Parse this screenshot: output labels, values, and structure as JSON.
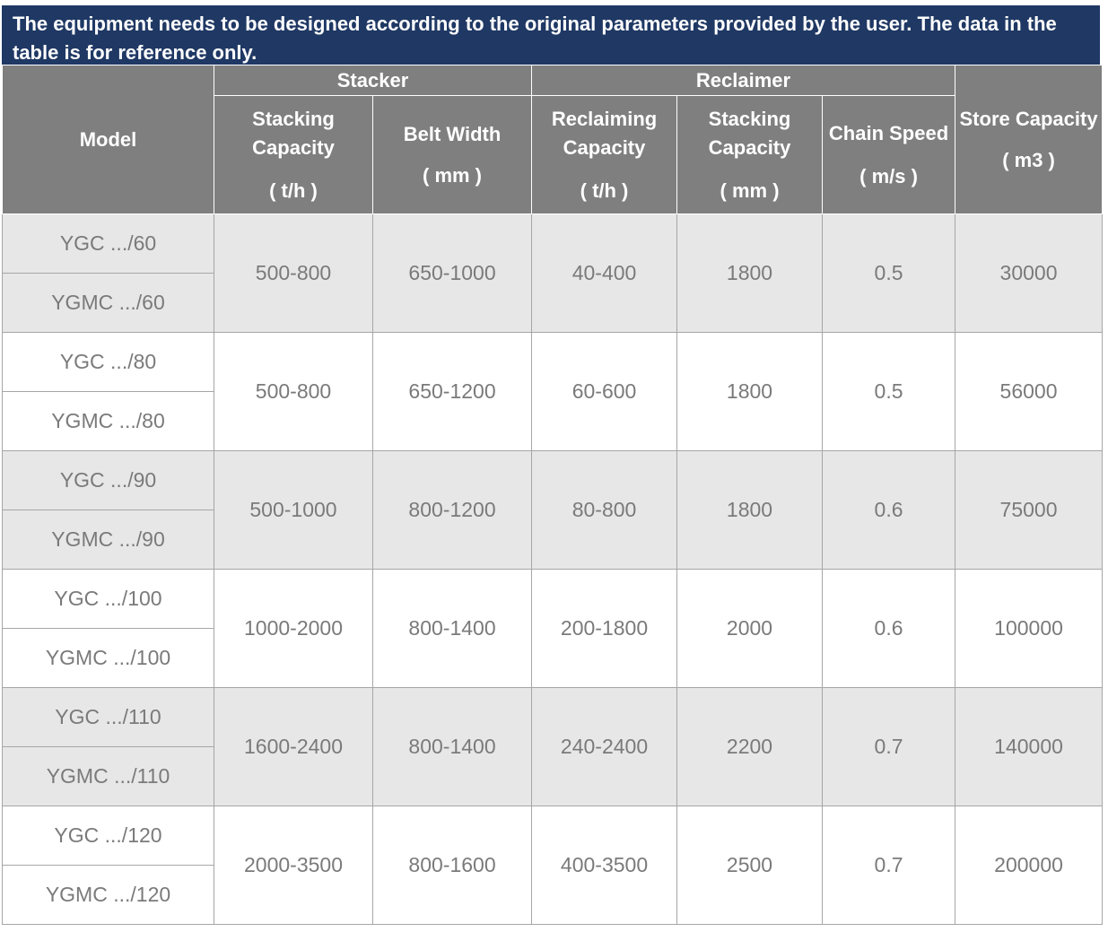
{
  "notice": "The equipment needs to be designed according to the original parameters provided by the user. The data in the table is for reference only.",
  "header": {
    "model": "Model",
    "stacker": "Stacker",
    "reclaimer": "Reclaimer",
    "stacking_capacity": "Stacking Capacity",
    "stacking_capacity_unit": "( t/h )",
    "belt_width": "Belt Width",
    "belt_width_unit": "( mm )",
    "reclaiming_capacity": "Reclaiming Capacity",
    "reclaiming_capacity_unit": "( t/h )",
    "reclaimer_stacking_capacity": "Stacking Capacity",
    "reclaimer_stacking_capacity_unit": "( mm )",
    "chain_speed": "Chain Speed",
    "chain_speed_unit": "( m/s )",
    "store_capacity": "Store Capacity",
    "store_capacity_unit": "( m3 )"
  },
  "rows": [
    {
      "model_a": "YGC  .../60",
      "model_b": "YGMC  .../60",
      "stacking_capacity": "500-800",
      "belt_width": "650-1000",
      "reclaiming_capacity": "40-400",
      "reclaimer_stacking_capacity": "1800",
      "chain_speed": "0.5",
      "store_capacity": "30000"
    },
    {
      "model_a": "YGC  .../80",
      "model_b": "YGMC  .../80",
      "stacking_capacity": "500-800",
      "belt_width": "650-1200",
      "reclaiming_capacity": "60-600",
      "reclaimer_stacking_capacity": "1800",
      "chain_speed": "0.5",
      "store_capacity": "56000"
    },
    {
      "model_a": "YGC  .../90",
      "model_b": "YGMC  .../90",
      "stacking_capacity": "500-1000",
      "belt_width": "800-1200",
      "reclaiming_capacity": "80-800",
      "reclaimer_stacking_capacity": "1800",
      "chain_speed": "0.6",
      "store_capacity": "75000"
    },
    {
      "model_a": "YGC  .../100",
      "model_b": "YGMC  .../100",
      "stacking_capacity": "1000-2000",
      "belt_width": "800-1400",
      "reclaiming_capacity": "200-1800",
      "reclaimer_stacking_capacity": "2000",
      "chain_speed": "0.6",
      "store_capacity": "100000"
    },
    {
      "model_a": "YGC  .../110",
      "model_b": "YGMC  .../110",
      "stacking_capacity": "1600-2400",
      "belt_width": "800-1400",
      "reclaiming_capacity": "240-2400",
      "reclaimer_stacking_capacity": "2200",
      "chain_speed": "0.7",
      "store_capacity": "140000"
    },
    {
      "model_a": "YGC  .../120",
      "model_b": "YGMC  .../120",
      "stacking_capacity": "2000-3500",
      "belt_width": "800-1600",
      "reclaiming_capacity": "400-3500",
      "reclaimer_stacking_capacity": "2500",
      "chain_speed": "0.7",
      "store_capacity": "200000"
    }
  ]
}
